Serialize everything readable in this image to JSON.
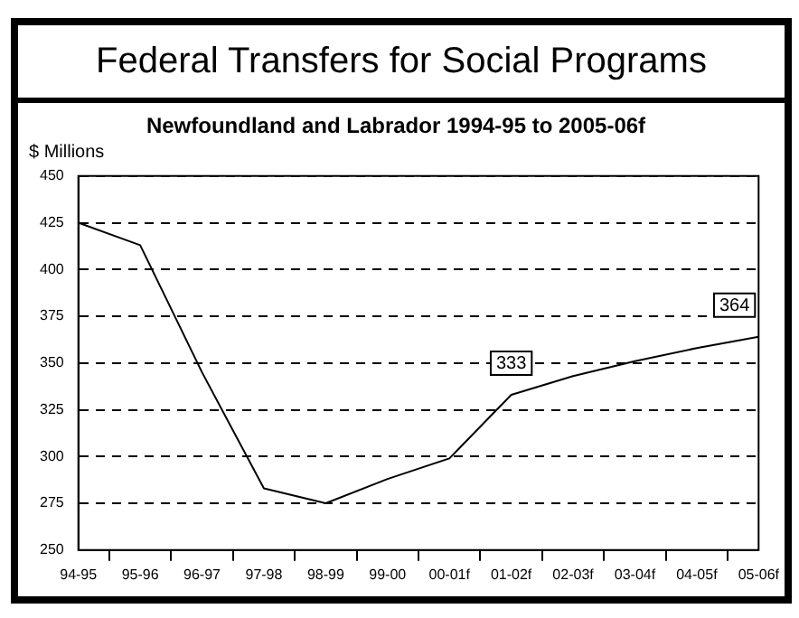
{
  "chart_data": {
    "type": "line",
    "title": "Federal Transfers for Social Programs",
    "subtitle": "Newfoundland and Labrador 1994-95 to 2005-06f",
    "ylabel": "$ Millions",
    "categories": [
      "94-95",
      "95-96",
      "96-97",
      "97-98",
      "98-99",
      "99-00",
      "00-01f",
      "01-02f",
      "02-03f",
      "03-04f",
      "04-05f",
      "05-06f"
    ],
    "series": [
      {
        "color": "#000000",
        "values": [
          425,
          413,
          345,
          283,
          275,
          288,
          299,
          333,
          343,
          351,
          358,
          364
        ],
        "value_labels": [
          null,
          null,
          null,
          null,
          null,
          null,
          null,
          "333",
          null,
          null,
          null,
          "364"
        ]
      }
    ],
    "ylim": [
      250,
      450
    ],
    "yticks": [
      250,
      275,
      300,
      325,
      350,
      375,
      400,
      425,
      450
    ],
    "grid": "y",
    "marker": "none",
    "line_style": "solid",
    "legend": false
  }
}
